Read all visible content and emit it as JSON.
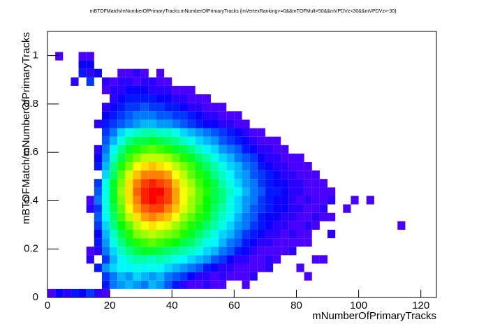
{
  "chart_data": {
    "type": "heatmap2d",
    "title": "mBTOFMatch/mNumberOfPrimaryTracks:mNumberOfPrimaryTracks {mVertexRanking>=0&&mTOFMult>50&&mVPDVz<30&&mVPDVz>-30}",
    "x_label": "mNumberOfPrimaryTracks",
    "y_label": "mBTOFMatch/mNumberOfPrimaryTracks",
    "xlim": [
      0,
      125
    ],
    "ylim": [
      0,
      1.1
    ],
    "xticks": [
      0,
      20,
      40,
      60,
      80,
      100,
      120
    ],
    "yticks": [
      0,
      0.2,
      0.4,
      0.6,
      0.8,
      1
    ],
    "xbins": [
      0,
      2.5,
      5,
      7.5,
      10,
      12.5,
      15,
      17.5,
      20,
      22.5,
      25,
      27.5,
      30,
      32.5,
      35,
      37.5,
      40,
      42.5,
      45,
      47.5,
      50,
      52.5,
      55,
      57.5,
      60,
      62.5,
      65,
      67.5,
      70,
      72.5,
      75,
      77.5,
      80,
      82.5,
      85,
      87.5,
      90,
      92.5,
      95,
      97.5,
      100,
      102.5,
      105,
      107.5,
      110,
      112.5,
      115,
      117.5,
      120,
      122.5,
      125
    ],
    "ybins": [
      0,
      0.035,
      0.07,
      0.105,
      0.14,
      0.175,
      0.21,
      0.245,
      0.28,
      0.315,
      0.35,
      0.385,
      0.42,
      0.455,
      0.49,
      0.525,
      0.56,
      0.595,
      0.63,
      0.665,
      0.7,
      0.735,
      0.77,
      0.805,
      0.84,
      0.875,
      0.91,
      0.945,
      0.98,
      1.015
    ],
    "z": [
      [
        2,
        4,
        3,
        5,
        4,
        6,
        3,
        2,
        0,
        0,
        0,
        0,
        0,
        0,
        0,
        0,
        0,
        0,
        0,
        0,
        0,
        0,
        0,
        0,
        0,
        0,
        0,
        0,
        0,
        0,
        0,
        0,
        0,
        0,
        0,
        0,
        0,
        0,
        0,
        0,
        0,
        0,
        0,
        0,
        0,
        0,
        0,
        0,
        0,
        0
      ],
      [
        0,
        0,
        0,
        0,
        0,
        0,
        0,
        5,
        8,
        9,
        10,
        9,
        8,
        10,
        9,
        7,
        5,
        3,
        2,
        2,
        3,
        2,
        2,
        0,
        0,
        2,
        0,
        0,
        0,
        0,
        0,
        0,
        0,
        0,
        0,
        0,
        0,
        0,
        0,
        0,
        0,
        0,
        0,
        0,
        0,
        0,
        0,
        0,
        0,
        0
      ],
      [
        0,
        0,
        0,
        0,
        0,
        0,
        0,
        6,
        8,
        10,
        9,
        11,
        10,
        9,
        10,
        8,
        7,
        6,
        4,
        3,
        3,
        2,
        3,
        2,
        2,
        2,
        3,
        0,
        0,
        0,
        0,
        0,
        0,
        2,
        0,
        0,
        0,
        0,
        0,
        0,
        0,
        0,
        0,
        0,
        0,
        0,
        0,
        0,
        0,
        0
      ],
      [
        0,
        0,
        0,
        0,
        0,
        0,
        5,
        9,
        11,
        12,
        12,
        13,
        12,
        13,
        12,
        11,
        10,
        9,
        8,
        7,
        5,
        4,
        3,
        3,
        2,
        2,
        2,
        2,
        3,
        0,
        0,
        0,
        2,
        0,
        0,
        0,
        0,
        0,
        0,
        0,
        0,
        0,
        0,
        0,
        0,
        0,
        0,
        0,
        0,
        0
      ],
      [
        0,
        0,
        0,
        0,
        0,
        3,
        0,
        6,
        10,
        12,
        14,
        15,
        15,
        14,
        15,
        14,
        13,
        12,
        11,
        10,
        9,
        7,
        6,
        4,
        3,
        3,
        2,
        2,
        3,
        2,
        0,
        0,
        0,
        0,
        2,
        2,
        0,
        0,
        0,
        0,
        0,
        0,
        0,
        0,
        0,
        0,
        0,
        0,
        0,
        0
      ],
      [
        0,
        0,
        0,
        0,
        0,
        2,
        3,
        8,
        11,
        14,
        16,
        18,
        19,
        19,
        18,
        17,
        16,
        15,
        14,
        13,
        11,
        10,
        8,
        7,
        5,
        4,
        3,
        2,
        2,
        2,
        2,
        3,
        0,
        0,
        0,
        0,
        0,
        0,
        0,
        0,
        0,
        0,
        0,
        0,
        0,
        0,
        0,
        0,
        0,
        0
      ],
      [
        0,
        0,
        0,
        0,
        0,
        0,
        5,
        9,
        13,
        16,
        19,
        21,
        22,
        23,
        22,
        21,
        20,
        18,
        17,
        15,
        13,
        12,
        10,
        8,
        7,
        5,
        4,
        3,
        3,
        2,
        2,
        2,
        2,
        2,
        0,
        0,
        0,
        0,
        0,
        0,
        0,
        0,
        0,
        0,
        0,
        0,
        0,
        0,
        0,
        0
      ],
      [
        0,
        0,
        0,
        0,
        0,
        0,
        4,
        10,
        14,
        18,
        21,
        24,
        25,
        26,
        25,
        24,
        23,
        21,
        19,
        17,
        15,
        13,
        11,
        10,
        8,
        6,
        5,
        4,
        3,
        3,
        2,
        3,
        2,
        2,
        0,
        0,
        3,
        0,
        0,
        0,
        0,
        0,
        0,
        0,
        0,
        0,
        0,
        0,
        0,
        0
      ],
      [
        0,
        0,
        0,
        0,
        0,
        0,
        6,
        11,
        16,
        20,
        23,
        26,
        28,
        29,
        28,
        27,
        25,
        23,
        21,
        19,
        17,
        15,
        13,
        11,
        9,
        8,
        6,
        5,
        4,
        3,
        3,
        2,
        2,
        3,
        2,
        0,
        0,
        0,
        0,
        0,
        0,
        0,
        0,
        0,
        0,
        2,
        0,
        0,
        0,
        0
      ],
      [
        0,
        0,
        0,
        0,
        0,
        0,
        7,
        12,
        17,
        22,
        26,
        29,
        31,
        32,
        31,
        30,
        28,
        25,
        23,
        21,
        19,
        16,
        14,
        12,
        10,
        8,
        7,
        5,
        4,
        4,
        3,
        3,
        2,
        2,
        3,
        2,
        2,
        0,
        0,
        0,
        0,
        0,
        0,
        0,
        0,
        0,
        0,
        0,
        0,
        0
      ],
      [
        0,
        0,
        0,
        0,
        0,
        3,
        6,
        13,
        18,
        23,
        28,
        31,
        33,
        34,
        34,
        32,
        30,
        27,
        25,
        22,
        20,
        17,
        15,
        13,
        11,
        9,
        7,
        6,
        5,
        4,
        4,
        3,
        3,
        2,
        2,
        3,
        0,
        0,
        2,
        0,
        0,
        0,
        0,
        0,
        0,
        0,
        0,
        0,
        0,
        0
      ],
      [
        0,
        0,
        0,
        0,
        0,
        2,
        8,
        13,
        19,
        24,
        29,
        32,
        35,
        36,
        35,
        34,
        31,
        28,
        25,
        23,
        20,
        18,
        16,
        13,
        11,
        9,
        8,
        6,
        5,
        4,
        4,
        3,
        2,
        3,
        2,
        2,
        3,
        0,
        0,
        2,
        0,
        2,
        0,
        0,
        0,
        0,
        0,
        0,
        0,
        0
      ],
      [
        0,
        0,
        0,
        0,
        0,
        0,
        7,
        13,
        19,
        25,
        29,
        33,
        35,
        36,
        36,
        34,
        31,
        28,
        26,
        23,
        21,
        18,
        16,
        14,
        12,
        10,
        8,
        7,
        5,
        5,
        4,
        3,
        3,
        2,
        2,
        2,
        2,
        0,
        0,
        0,
        0,
        0,
        0,
        0,
        0,
        0,
        0,
        0,
        0,
        0
      ],
      [
        0,
        0,
        0,
        0,
        0,
        0,
        6,
        13,
        19,
        24,
        29,
        32,
        34,
        35,
        34,
        33,
        30,
        27,
        25,
        22,
        20,
        18,
        15,
        13,
        11,
        9,
        8,
        6,
        5,
        4,
        4,
        3,
        3,
        2,
        2,
        2,
        0,
        0,
        0,
        0,
        0,
        0,
        0,
        0,
        0,
        0,
        0,
        0,
        0,
        0
      ],
      [
        0,
        0,
        0,
        0,
        0,
        0,
        0,
        11,
        17,
        23,
        27,
        30,
        32,
        32,
        32,
        31,
        28,
        26,
        23,
        21,
        19,
        16,
        14,
        12,
        10,
        9,
        7,
        6,
        5,
        4,
        3,
        3,
        2,
        2,
        2,
        0,
        0,
        0,
        0,
        0,
        0,
        0,
        0,
        0,
        0,
        0,
        0,
        0,
        0,
        0
      ],
      [
        0,
        0,
        0,
        0,
        0,
        0,
        5,
        10,
        16,
        21,
        24,
        28,
        29,
        30,
        29,
        28,
        26,
        24,
        22,
        19,
        17,
        15,
        13,
        11,
        10,
        8,
        7,
        5,
        4,
        3,
        3,
        2,
        2,
        2,
        0,
        0,
        0,
        0,
        0,
        0,
        0,
        0,
        0,
        0,
        0,
        0,
        0,
        0,
        0,
        0
      ],
      [
        0,
        0,
        0,
        0,
        0,
        0,
        4,
        9,
        14,
        18,
        22,
        24,
        26,
        26,
        26,
        25,
        23,
        21,
        19,
        17,
        15,
        13,
        11,
        10,
        8,
        7,
        6,
        4,
        3,
        3,
        2,
        2,
        2,
        0,
        0,
        0,
        0,
        0,
        0,
        0,
        0,
        0,
        0,
        0,
        0,
        0,
        0,
        0,
        0,
        0
      ],
      [
        0,
        0,
        0,
        0,
        0,
        0,
        3,
        8,
        12,
        16,
        19,
        21,
        22,
        23,
        22,
        21,
        19,
        18,
        16,
        14,
        12,
        11,
        9,
        8,
        7,
        5,
        4,
        3,
        3,
        2,
        2,
        0,
        0,
        0,
        0,
        0,
        0,
        0,
        0,
        0,
        0,
        0,
        0,
        0,
        0,
        0,
        0,
        0,
        0,
        0
      ],
      [
        0,
        0,
        0,
        0,
        0,
        0,
        0,
        7,
        10,
        13,
        16,
        18,
        18,
        19,
        18,
        17,
        16,
        14,
        13,
        11,
        10,
        9,
        7,
        6,
        5,
        4,
        3,
        2,
        2,
        2,
        0,
        0,
        0,
        0,
        0,
        0,
        0,
        0,
        0,
        0,
        0,
        0,
        0,
        0,
        0,
        0,
        0,
        0,
        0,
        0
      ],
      [
        0,
        0,
        0,
        0,
        0,
        0,
        0,
        6,
        8,
        11,
        13,
        14,
        15,
        15,
        14,
        14,
        13,
        11,
        10,
        9,
        8,
        7,
        6,
        5,
        4,
        3,
        2,
        2,
        0,
        0,
        0,
        0,
        0,
        0,
        0,
        0,
        0,
        0,
        0,
        0,
        0,
        0,
        0,
        0,
        0,
        0,
        0,
        0,
        0,
        0
      ],
      [
        0,
        0,
        0,
        0,
        0,
        0,
        3,
        5,
        6,
        7,
        8,
        9,
        10,
        10,
        9,
        9,
        8,
        7,
        6,
        5,
        4,
        4,
        3,
        3,
        2,
        2,
        0,
        0,
        0,
        0,
        0,
        0,
        0,
        0,
        0,
        0,
        0,
        0,
        0,
        0,
        0,
        0,
        0,
        0,
        0,
        0,
        0,
        0,
        0,
        0
      ],
      [
        0,
        0,
        0,
        0,
        0,
        0,
        0,
        4,
        5,
        6,
        7,
        8,
        8,
        8,
        7,
        7,
        6,
        6,
        5,
        4,
        3,
        3,
        2,
        2,
        2,
        0,
        0,
        0,
        0,
        0,
        0,
        0,
        0,
        0,
        0,
        0,
        0,
        0,
        0,
        0,
        0,
        0,
        0,
        0,
        0,
        0,
        0,
        0,
        0,
        0
      ],
      [
        0,
        0,
        0,
        0,
        0,
        0,
        0,
        3,
        4,
        5,
        6,
        6,
        7,
        6,
        6,
        5,
        5,
        4,
        3,
        3,
        2,
        2,
        2,
        0,
        0,
        0,
        0,
        0,
        0,
        0,
        0,
        0,
        0,
        0,
        0,
        0,
        0,
        0,
        0,
        0,
        0,
        0,
        0,
        0,
        0,
        0,
        0,
        0,
        0,
        0
      ],
      [
        0,
        0,
        0,
        0,
        0,
        0,
        0,
        0,
        3,
        4,
        5,
        5,
        5,
        5,
        4,
        4,
        3,
        3,
        2,
        2,
        2,
        0,
        0,
        0,
        0,
        0,
        0,
        0,
        0,
        0,
        0,
        0,
        0,
        0,
        0,
        0,
        0,
        0,
        0,
        0,
        0,
        0,
        0,
        0,
        0,
        0,
        0,
        0,
        0,
        0
      ],
      [
        0,
        0,
        0,
        0,
        0,
        0,
        0,
        2,
        3,
        3,
        4,
        4,
        4,
        3,
        3,
        3,
        2,
        2,
        2,
        0,
        0,
        0,
        0,
        0,
        0,
        0,
        0,
        0,
        0,
        0,
        0,
        0,
        0,
        0,
        0,
        0,
        0,
        0,
        0,
        0,
        0,
        0,
        0,
        0,
        0,
        0,
        0,
        0,
        0,
        0
      ],
      [
        0,
        0,
        0,
        3,
        0,
        6,
        0,
        3,
        2,
        3,
        3,
        2,
        3,
        3,
        2,
        2,
        0,
        0,
        0,
        0,
        0,
        0,
        0,
        0,
        0,
        0,
        0,
        0,
        0,
        0,
        0,
        0,
        0,
        0,
        0,
        0,
        0,
        0,
        0,
        0,
        0,
        0,
        0,
        0,
        0,
        0,
        0,
        0,
        0,
        0
      ],
      [
        0,
        0,
        0,
        0,
        5,
        3,
        4,
        0,
        0,
        2,
        2,
        3,
        2,
        0,
        2,
        0,
        0,
        0,
        0,
        0,
        0,
        0,
        0,
        0,
        0,
        0,
        0,
        0,
        0,
        0,
        0,
        0,
        0,
        0,
        0,
        0,
        0,
        0,
        0,
        0,
        0,
        0,
        0,
        0,
        0,
        0,
        0,
        0,
        0,
        0
      ],
      [
        0,
        0,
        0,
        0,
        4,
        4,
        0,
        0,
        0,
        0,
        0,
        0,
        0,
        0,
        0,
        0,
        0,
        0,
        0,
        0,
        0,
        0,
        0,
        0,
        0,
        0,
        0,
        0,
        0,
        0,
        0,
        0,
        0,
        0,
        0,
        0,
        0,
        0,
        0,
        0,
        0,
        0,
        0,
        0,
        0,
        0,
        0,
        0,
        0,
        0
      ],
      [
        0,
        2,
        0,
        0,
        2,
        2,
        0,
        0,
        0,
        0,
        0,
        0,
        0,
        0,
        0,
        0,
        0,
        0,
        0,
        0,
        0,
        0,
        0,
        0,
        0,
        0,
        0,
        0,
        0,
        0,
        0,
        0,
        0,
        0,
        0,
        0,
        0,
        0,
        0,
        0,
        0,
        0,
        0,
        0,
        0,
        0,
        0,
        0,
        0,
        0
      ]
    ]
  }
}
